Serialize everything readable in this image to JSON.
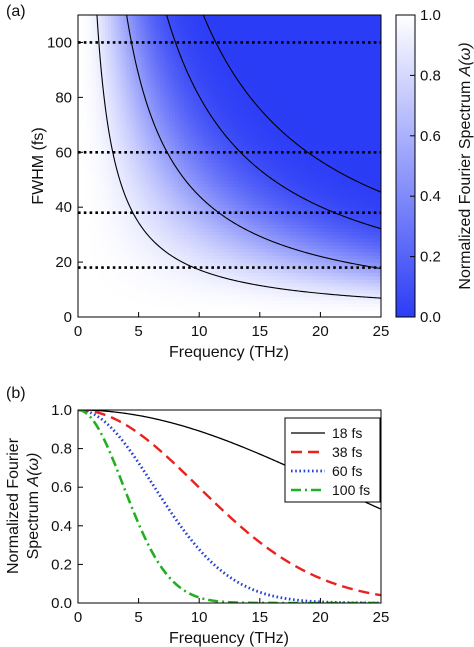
{
  "chart_data": [
    {
      "panel_label": "(a)",
      "type": "heatmap",
      "xlabel": "Frequency (THz)",
      "ylabel": "FWHM (fs)",
      "xlim": [
        0,
        25
      ],
      "ylim": [
        0,
        110
      ],
      "xticks": [
        0,
        5,
        10,
        15,
        20,
        25
      ],
      "yticks": [
        0,
        20,
        40,
        60,
        80,
        100
      ],
      "colorbar": {
        "label": "Normalized Fourier Spectrum ",
        "label_symbol": "A(ω)",
        "range": [
          0.0,
          1.0
        ],
        "ticks": [
          "0.0",
          "0.2",
          "0.4",
          "0.6",
          "0.8",
          "1.0"
        ],
        "color_low": "#2b3cf6",
        "color_high": "#ffffff"
      },
      "dotted_lines_fwhm": [
        18,
        38,
        60,
        100
      ],
      "contour_levels": [
        0.9,
        0.5,
        0.1,
        0.01
      ],
      "grid": false
    },
    {
      "panel_label": "(b)",
      "type": "line",
      "xlabel": "Frequency (THz)",
      "ylabel_line1": "Normalized Fourier",
      "ylabel_line2": "Spectrum ",
      "ylabel_symbol": "A(ω)",
      "xlim": [
        0,
        25
      ],
      "ylim": [
        0,
        1.0
      ],
      "xticks": [
        0,
        5,
        10,
        15,
        20,
        25
      ],
      "yticks": [
        "0.0",
        "0.2",
        "0.4",
        "0.6",
        "0.8",
        "1.0"
      ],
      "legend_position": "top-right",
      "series": [
        {
          "name": "18 fs",
          "fwhm_fs": 18,
          "color": "#000000",
          "style": "solid"
        },
        {
          "name": "38 fs",
          "fwhm_fs": 38,
          "color": "#e8231f",
          "style": "dashed"
        },
        {
          "name": "60 fs",
          "fwhm_fs": 60,
          "color": "#2443d6",
          "style": "dotted"
        },
        {
          "name": "100 fs",
          "fwhm_fs": 100,
          "color": "#22b022",
          "style": "dashdot"
        }
      ],
      "x": [
        0,
        2.5,
        5,
        7.5,
        10,
        12.5,
        15,
        17.5,
        20,
        22.5,
        25
      ],
      "values_18fs": [
        1.0,
        0.993,
        0.971,
        0.936,
        0.889,
        0.833,
        0.769,
        0.699,
        0.627,
        0.555,
        0.484
      ],
      "values_38fs": [
        1.0,
        0.969,
        0.881,
        0.752,
        0.602,
        0.451,
        0.317,
        0.208,
        0.127,
        0.073,
        0.039
      ],
      "values_60fs": [
        1.0,
        0.924,
        0.729,
        0.491,
        0.282,
        0.139,
        0.058,
        0.021,
        0.006,
        0.0,
        0.0
      ],
      "values_100fs": [
        1.0,
        0.802,
        0.416,
        0.137,
        0.028,
        0.004,
        0.0,
        0.0,
        0.0,
        0.0,
        0.0
      ],
      "grid": false
    }
  ]
}
